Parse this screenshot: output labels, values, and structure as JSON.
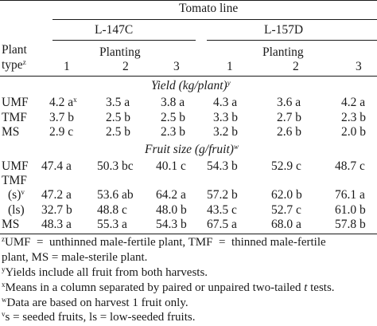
{
  "header": {
    "tomato_line": "Tomato line",
    "lines": [
      "L-147C",
      "L-157D"
    ],
    "plant": "Plant",
    "type": "type",
    "type_sup": "z",
    "planting": "Planting",
    "planting_numbers": [
      "1",
      "2",
      "3"
    ]
  },
  "sections": {
    "yield": {
      "title": "Yield (kg/plant)",
      "sup": "y"
    },
    "fruit": {
      "title": "Fruit size (g/fruit)",
      "sup": "w"
    }
  },
  "rows": {
    "yield_umf": {
      "label": "UMF",
      "cells": [
        "4.2 a",
        "3.5 a",
        "3.8 a",
        "4.3 a",
        "3.6 a",
        "4.2 a"
      ],
      "first_sup": "x"
    },
    "yield_tmf": {
      "label": "TMF",
      "cells": [
        "3.7 b",
        "2.5 b",
        "2.5 b",
        "3.3 b",
        "2.7 b",
        "2.3 b"
      ]
    },
    "yield_ms": {
      "label": "MS",
      "cells": [
        "2.9 c",
        "2.5 b",
        "2.3 b",
        "3.2 b",
        "2.6 b",
        "2.0 b"
      ]
    },
    "fruit_umf": {
      "label": "UMF",
      "cells": [
        "47.4 a",
        "50.3 bc",
        "40.1 c",
        "54.3 b",
        "52.9 c",
        "48.7 c"
      ]
    },
    "fruit_tmf": {
      "label": "TMF"
    },
    "fruit_s": {
      "label": "(s)",
      "label_sup": "v",
      "cells": [
        "47.2 a",
        "53.6 ab",
        "64.2 a",
        "57.2 b",
        "62.0 b",
        "76.1 a"
      ]
    },
    "fruit_ls": {
      "label": "(ls)",
      "cells": [
        "32.7 b",
        "48.8 c",
        "48.0 b",
        "43.5 c",
        "52.7 c",
        "61.0 b"
      ]
    },
    "fruit_ms": {
      "label": "MS",
      "cells": [
        "48.3 a",
        "55.3 a",
        "54.3 b",
        "67.5 a",
        "68.0 a",
        "57.8 b"
      ]
    }
  },
  "footnotes": {
    "z": {
      "mark": "z",
      "text_line1": "UMF  =  unthinned male-fertile plant, TMF  =  thinned male-fertile",
      "text_line2": "plant, MS = male-sterile plant."
    },
    "y": {
      "mark": "y",
      "text": "Yields include all fruit from both harvests."
    },
    "x": {
      "mark": "x",
      "text_a": "Means in a column separated by paired or unpaired two-tailed ",
      "text_t": "t",
      "text_b": " tests."
    },
    "w": {
      "mark": "w",
      "text": "Data are based on harvest 1 fruit only."
    },
    "v": {
      "mark": "v",
      "text": "s = seeded fruits, ls = low-seeded fruits."
    }
  }
}
